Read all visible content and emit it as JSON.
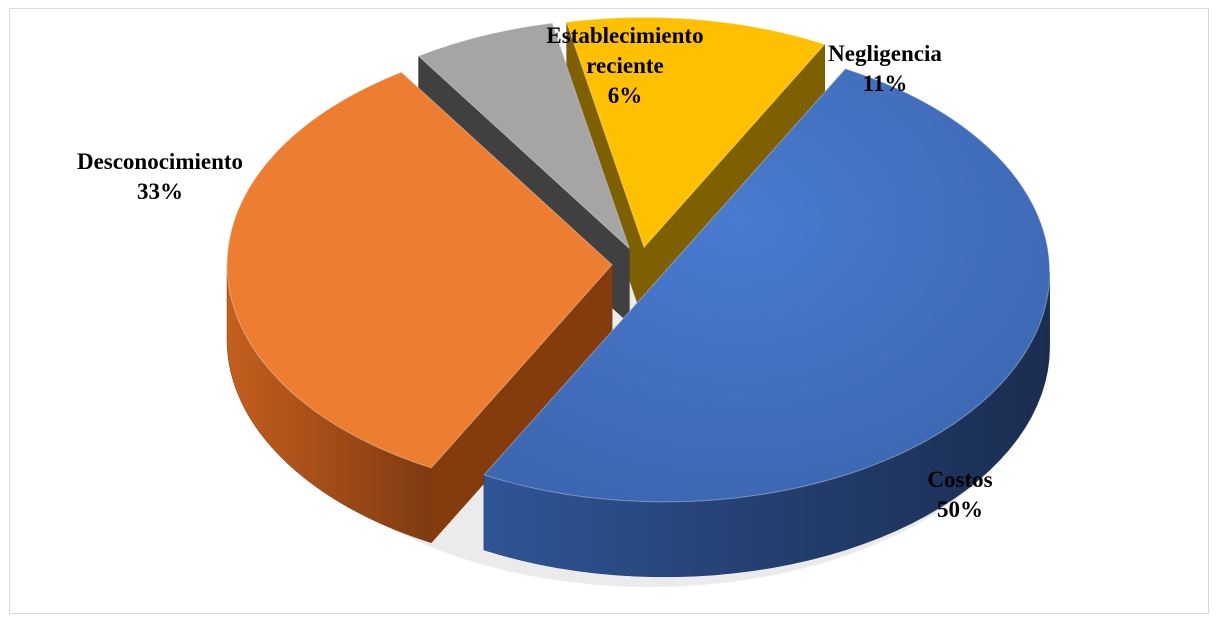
{
  "chart_data": {
    "type": "pie",
    "style": "3d-exploded",
    "title": "",
    "legend": "none",
    "slices": [
      {
        "name": "Costos",
        "value": 50,
        "label": "50%",
        "color": "#4472C4",
        "side_color": "#1F3864"
      },
      {
        "name": "Desconocimiento",
        "value": 33,
        "label": "33%",
        "color": "#ED7D31",
        "side_color": "#843C0C"
      },
      {
        "name": "Establecimiento reciente",
        "name_lines": [
          "Establecimiento",
          "reciente"
        ],
        "value": 6,
        "label": "6%",
        "color": "#A5A5A5",
        "side_color": "#404040"
      },
      {
        "name": "Negligencia",
        "value": 11,
        "label": "11%",
        "color": "#FFC000",
        "side_color": "#7F6000"
      }
    ]
  }
}
